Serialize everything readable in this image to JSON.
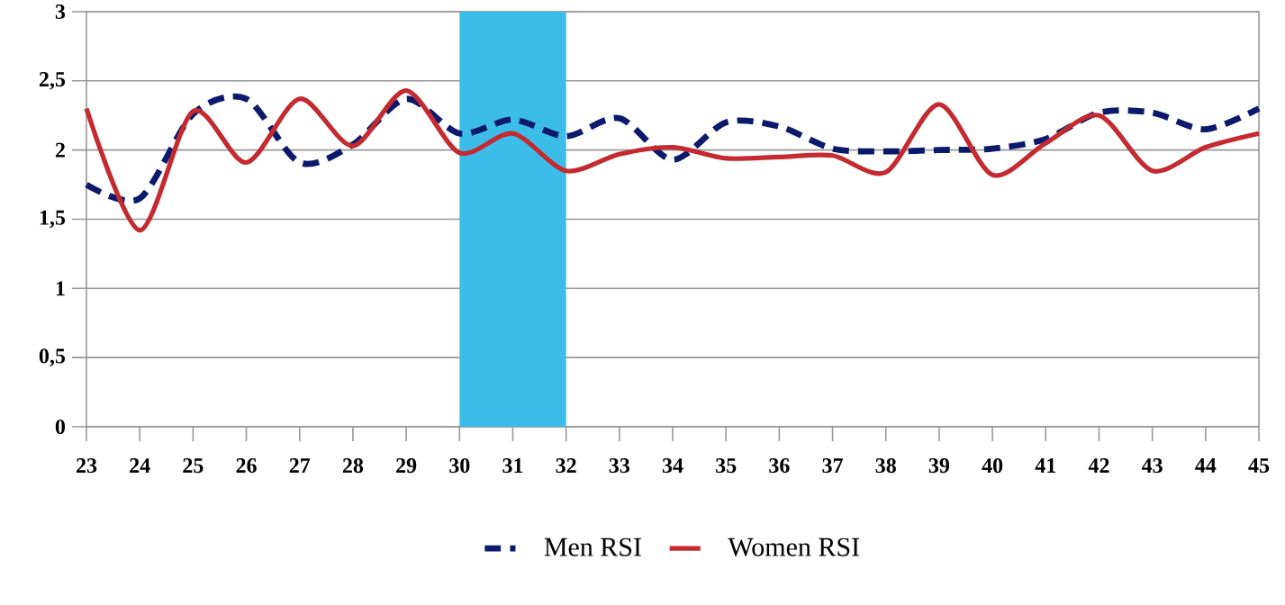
{
  "chart_data": {
    "type": "line",
    "x": [
      23,
      24,
      25,
      26,
      27,
      28,
      29,
      30,
      31,
      32,
      33,
      34,
      35,
      36,
      37,
      38,
      39,
      40,
      41,
      42,
      43,
      44,
      45
    ],
    "series": [
      {
        "name": "Men RSI",
        "color": "#0d1a6b",
        "line_style": "dashed",
        "values": [
          1.75,
          1.65,
          2.26,
          2.37,
          1.91,
          2.04,
          2.37,
          2.12,
          2.22,
          2.1,
          2.23,
          1.93,
          2.2,
          2.17,
          2.01,
          1.99,
          2.0,
          2.01,
          2.08,
          2.27,
          2.27,
          2.15,
          2.3
        ]
      },
      {
        "name": "Women RSI",
        "color": "#c42a30",
        "line_style": "solid",
        "values": [
          2.3,
          1.42,
          2.28,
          1.91,
          2.37,
          2.03,
          2.43,
          1.98,
          2.12,
          1.85,
          1.97,
          2.02,
          1.94,
          1.95,
          1.96,
          1.84,
          2.33,
          1.82,
          2.05,
          2.25,
          1.85,
          2.02,
          2.12
        ]
      }
    ],
    "xlim": [
      23,
      45
    ],
    "xticks": [
      23,
      24,
      25,
      26,
      27,
      28,
      29,
      30,
      31,
      32,
      33,
      34,
      35,
      36,
      37,
      38,
      39,
      40,
      41,
      42,
      43,
      44,
      45
    ],
    "ylim": [
      0,
      3
    ],
    "yticks": [
      0,
      {
        "value": 0.5,
        "label": "0,5"
      },
      1,
      {
        "value": 1.5,
        "label": "1,5"
      },
      2,
      {
        "value": 2.5,
        "label": "2,5"
      },
      3
    ],
    "bands": [
      {
        "axis": "x",
        "from": 30,
        "to": 32,
        "color": "#3cbde9"
      }
    ],
    "grid": "y",
    "legend": "bottom",
    "marker": "none"
  }
}
